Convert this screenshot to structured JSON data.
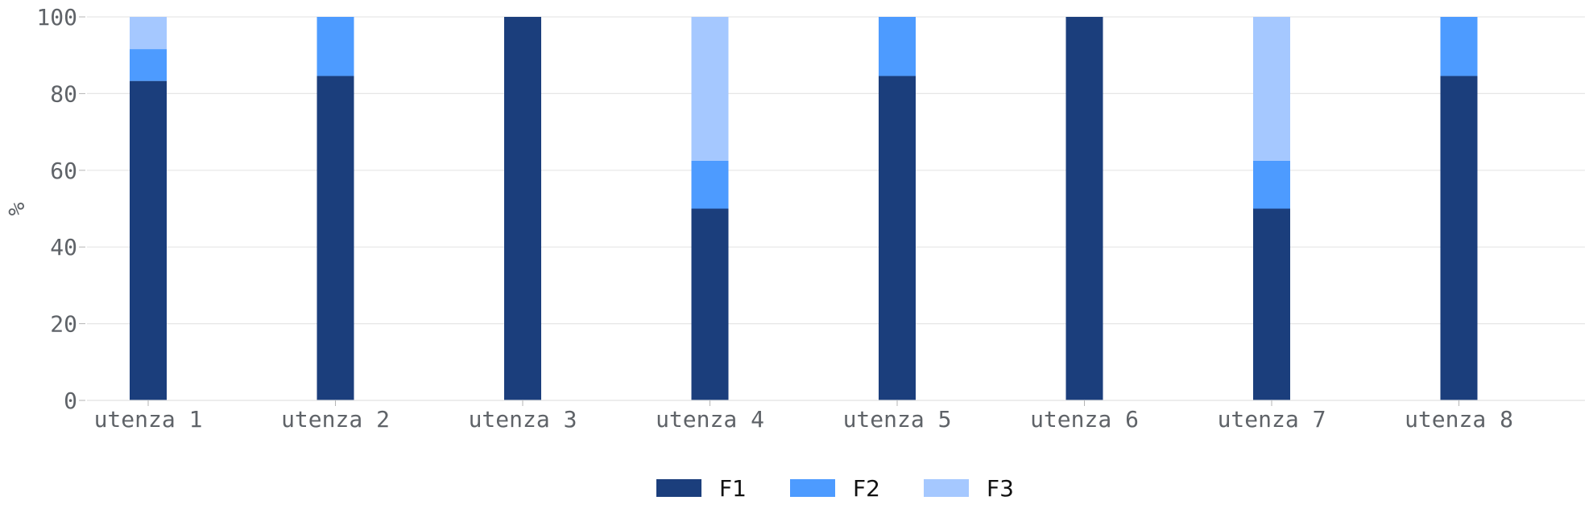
{
  "chart_data": {
    "type": "bar",
    "stacked": true,
    "categories": [
      "utenza 1",
      "utenza 2",
      "utenza 3",
      "utenza 4",
      "utenza 5",
      "utenza 6",
      "utenza 7",
      "utenza 8"
    ],
    "series": [
      {
        "name": "F1",
        "color": "#1b3e7c",
        "values": [
          83.3,
          84.6,
          100,
          50,
          84.6,
          100,
          50,
          84.6
        ]
      },
      {
        "name": "F2",
        "color": "#4d9bff",
        "values": [
          8.3,
          15.4,
          0,
          12.5,
          15.4,
          0,
          12.5,
          15.4
        ]
      },
      {
        "name": "F3",
        "color": "#a5c8ff",
        "values": [
          8.4,
          0,
          0,
          37.5,
          0,
          0,
          37.5,
          0
        ]
      }
    ],
    "ylabel": "%",
    "ylim": [
      0,
      100
    ],
    "yticks": [
      0,
      20,
      40,
      60,
      80,
      100
    ],
    "grid": true,
    "legend_position": "bottom-center"
  }
}
